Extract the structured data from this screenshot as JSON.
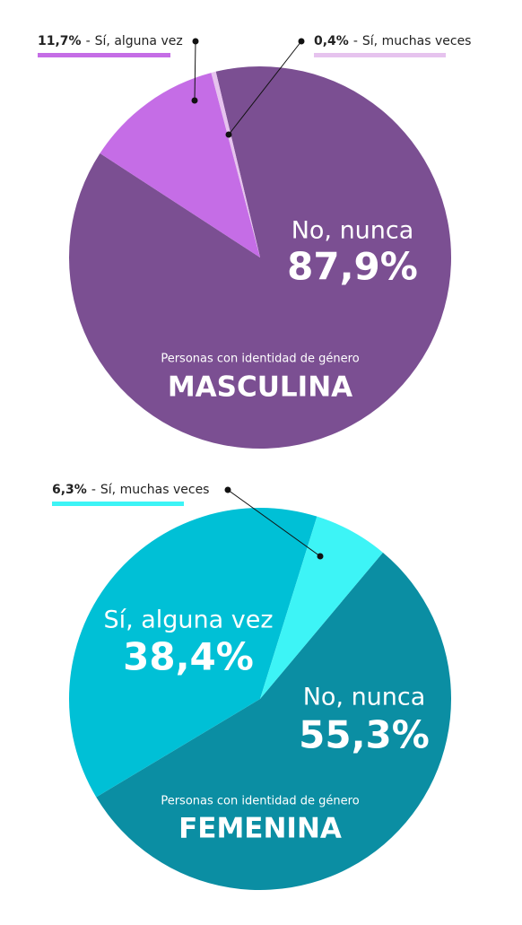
{
  "chart_data": [
    {
      "type": "pie",
      "subtitle": "Personas con identidad de género",
      "title": "MASCULINA",
      "separator": "-",
      "categories": [
        "No, nunca",
        "Sí, alguna vez",
        "Sí, muchas veces"
      ],
      "values": [
        87.9,
        11.7,
        0.4
      ],
      "value_labels": [
        "87,9%",
        "11,7%",
        "0,4%"
      ],
      "colors": [
        "#7b4f92",
        "#c56de6",
        "#e6c3ee"
      ]
    },
    {
      "type": "pie",
      "subtitle": "Personas con identidad de género",
      "title": "FEMENINA",
      "separator": "-",
      "categories": [
        "No, nunca",
        "Sí, alguna vez",
        "Sí, muchas veces"
      ],
      "values": [
        55.3,
        38.4,
        6.3
      ],
      "value_labels": [
        "55,3%",
        "38,4%",
        "6,3%"
      ],
      "colors": [
        "#0b8ea3",
        "#00c0d6",
        "#3df4f6"
      ]
    }
  ]
}
